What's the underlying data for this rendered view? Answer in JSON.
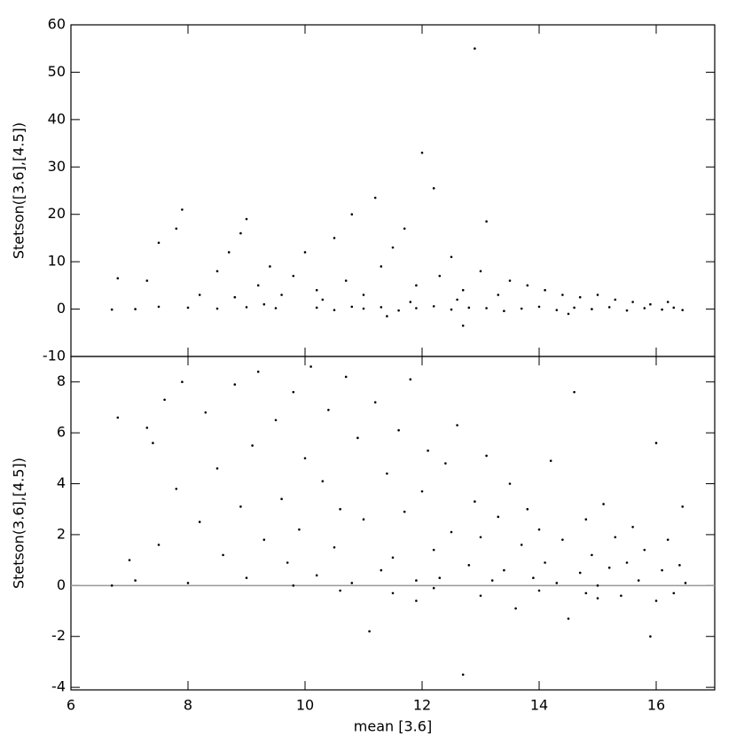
{
  "chart_data": [
    {
      "type": "scatter",
      "ylabel": "Stetson([3.6],[4.5])",
      "color": "#000000",
      "xlim": [
        6,
        17
      ],
      "ylim": [
        -10,
        60
      ],
      "yticks": [
        -10,
        0,
        10,
        20,
        30,
        40,
        50,
        60
      ],
      "x": [
        10.2,
        10.5,
        10.8,
        11.0,
        11.3,
        11.6,
        11.9,
        12.2,
        12.5,
        12.8,
        13.1,
        13.4,
        13.7,
        14.0,
        14.3,
        14.6,
        14.9,
        15.2,
        15.5,
        15.8,
        16.1,
        16.3,
        16.45,
        9.5,
        9.0,
        8.5,
        8.0,
        7.5,
        7.1,
        6.7,
        7.3,
        7.5,
        7.9,
        7.8,
        8.2,
        8.5,
        8.7,
        8.9,
        9.0,
        9.2,
        9.4,
        9.6,
        9.8,
        10.0,
        10.2,
        10.5,
        10.7,
        10.8,
        11.0,
        11.2,
        11.3,
        11.5,
        11.7,
        11.9,
        12.0,
        12.2,
        12.3,
        12.5,
        12.7,
        12.9,
        13.0,
        13.1,
        13.3,
        13.5,
        13.8,
        14.1,
        14.4,
        14.7,
        15.0,
        15.3,
        15.6,
        15.9,
        16.2,
        10.3,
        11.8,
        12.6,
        9.3,
        8.8,
        11.4,
        12.7,
        14.5,
        6.8
      ],
      "values": [
        0.3,
        -0.2,
        0.5,
        0.1,
        0.4,
        -0.3,
        0.2,
        0.6,
        -0.1,
        0.3,
        0.2,
        -0.4,
        0.1,
        0.5,
        -0.2,
        0.3,
        0,
        0.4,
        -0.3,
        0.2,
        -0.1,
        0.3,
        -0.2,
        0.2,
        0.4,
        0.1,
        0.3,
        0.5,
        0,
        -0.1,
        6,
        14,
        21,
        17,
        3,
        8,
        12,
        16,
        19,
        5,
        9,
        3,
        7,
        12,
        4,
        15,
        6,
        20,
        3,
        23.5,
        9,
        13,
        17,
        5,
        33,
        25.5,
        7,
        11,
        4,
        55,
        8,
        18.5,
        3,
        6,
        5,
        4,
        3,
        2.5,
        3,
        2,
        1.5,
        1,
        1.5,
        2,
        1.5,
        2,
        1,
        2.5,
        -1.5,
        -3.5,
        -1,
        6.5
      ]
    },
    {
      "type": "scatter",
      "ylabel": "Stetson(3.6],[4.5])",
      "xlabel": "mean [3.6]",
      "color": "#000000",
      "xlim": [
        6,
        17
      ],
      "xticks": [
        6,
        8,
        10,
        12,
        14,
        16
      ],
      "ylim": [
        -4.1,
        9
      ],
      "yticks": [
        -4,
        -2,
        0,
        2,
        4,
        6,
        8
      ],
      "reference_line": 0,
      "reference_color": "#999999",
      "x": [
        6.7,
        6.8,
        7.0,
        7.1,
        7.3,
        7.4,
        7.5,
        7.6,
        7.8,
        7.9,
        8.0,
        8.2,
        8.3,
        8.5,
        8.6,
        8.8,
        8.9,
        9.0,
        9.1,
        9.2,
        9.3,
        9.5,
        9.6,
        9.7,
        9.8,
        9.9,
        10.0,
        10.1,
        10.2,
        10.3,
        10.4,
        10.5,
        10.6,
        10.7,
        10.8,
        10.9,
        11.0,
        11.1,
        11.2,
        11.3,
        11.4,
        11.5,
        11.6,
        11.7,
        11.8,
        11.9,
        12.0,
        12.1,
        12.2,
        12.3,
        12.4,
        12.5,
        12.6,
        12.7,
        12.8,
        12.9,
        13.0,
        13.1,
        13.2,
        13.3,
        13.4,
        13.5,
        13.6,
        13.7,
        13.8,
        13.9,
        14.0,
        14.1,
        14.2,
        14.3,
        14.4,
        14.5,
        14.6,
        14.7,
        14.8,
        14.9,
        15.0,
        15.1,
        15.2,
        15.3,
        15.4,
        15.5,
        15.6,
        15.7,
        15.8,
        15.9,
        16.0,
        16.1,
        16.2,
        16.3,
        16.4,
        16.45,
        16.5,
        10.6,
        11.5,
        12.2,
        13.0,
        14.0,
        15.0,
        16.0,
        9.8,
        11.9,
        14.8
      ],
      "values": [
        0,
        6.6,
        1.0,
        0.2,
        6.2,
        5.6,
        1.6,
        7.3,
        3.8,
        8.0,
        0.1,
        2.5,
        6.8,
        4.6,
        1.2,
        7.9,
        3.1,
        0.3,
        5.5,
        8.4,
        1.8,
        6.5,
        3.4,
        0.9,
        7.6,
        2.2,
        5.0,
        8.6,
        0.4,
        4.1,
        6.9,
        1.5,
        3.0,
        8.2,
        0.1,
        5.8,
        2.6,
        -1.8,
        7.2,
        0.6,
        4.4,
        1.1,
        6.1,
        2.9,
        8.1,
        0.2,
        3.7,
        5.3,
        1.4,
        0.3,
        4.8,
        2.1,
        6.3,
        -3.5,
        0.8,
        3.3,
        1.9,
        5.1,
        0.2,
        2.7,
        0.6,
        4.0,
        -0.9,
        1.6,
        3.0,
        0.3,
        2.2,
        0.9,
        4.9,
        0.1,
        1.8,
        -1.3,
        7.6,
        0.5,
        2.6,
        1.2,
        0.0,
        3.2,
        0.7,
        1.9,
        -0.4,
        0.9,
        2.3,
        0.2,
        1.4,
        -2.0,
        5.6,
        0.6,
        1.8,
        -0.3,
        0.8,
        3.1,
        0.1,
        -0.2,
        -0.3,
        -0.1,
        -0.4,
        -0.2,
        -0.5,
        -0.6,
        0.0,
        -0.6,
        -0.3
      ]
    }
  ]
}
